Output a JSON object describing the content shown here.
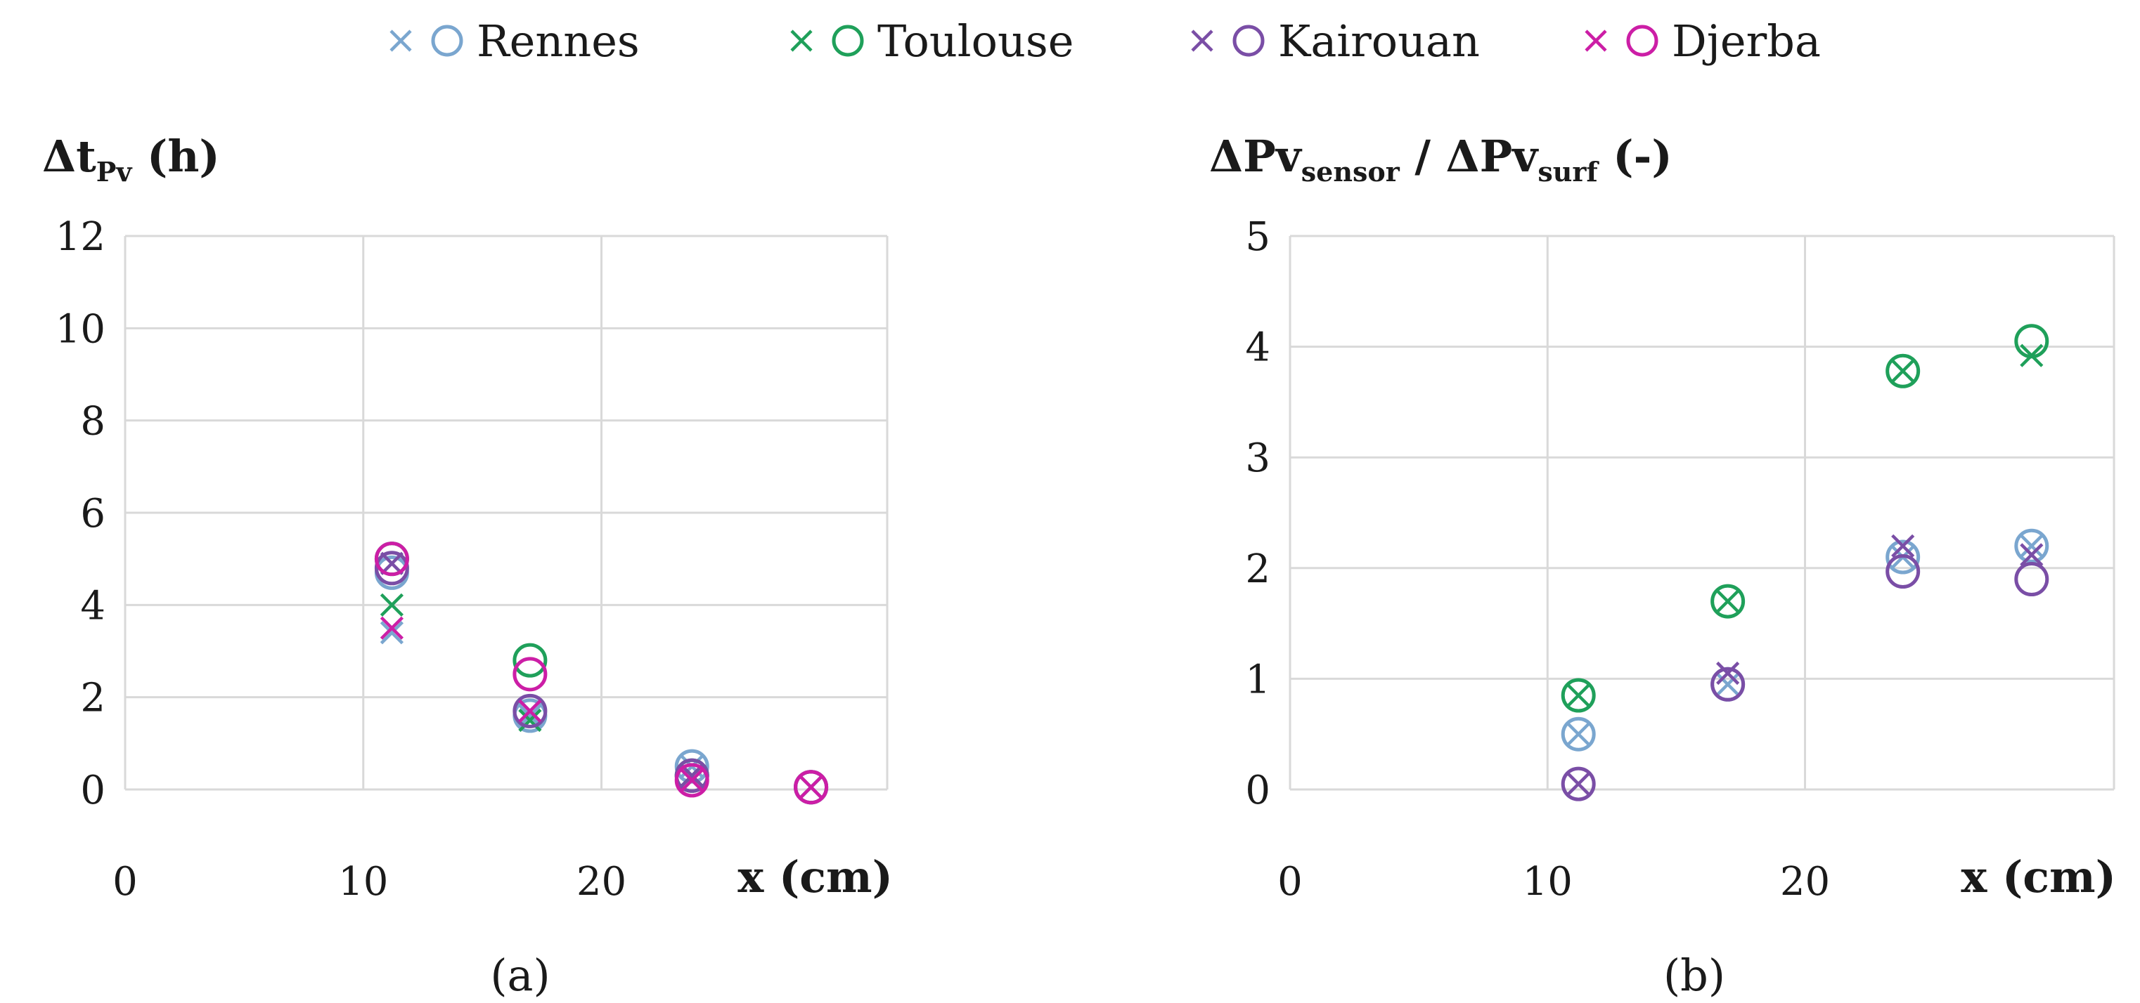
{
  "legend": [
    {
      "label": "Rennes",
      "color": "#7aa6cf",
      "marks": [
        "x",
        "o"
      ]
    },
    {
      "label": "Toulouse",
      "color": "#1fa05a",
      "marks": [
        "x",
        "o"
      ]
    },
    {
      "label": "Kairouan",
      "color": "#7a4ea6",
      "marks": [
        "x",
        "o"
      ]
    },
    {
      "label": "Djerba",
      "color": "#cc1ea6",
      "marks": [
        "x",
        "o"
      ]
    }
  ],
  "chart_data": [
    {
      "type": "scatter",
      "caption": "(a)",
      "ylabel_main": "Δt",
      "ylabel_sub": "Pv",
      "ylabel_unit": " (h)",
      "xlabel": "x (cm)",
      "xlim": [
        0,
        32
      ],
      "ylim": [
        0,
        12
      ],
      "xticks": [
        0,
        10,
        20
      ],
      "yticks": [
        0,
        2,
        4,
        6,
        8,
        10,
        12
      ],
      "grid": true,
      "series": [
        {
          "name": "Rennes",
          "color": "#7aa6cf",
          "x_marks": [
            [
              11.2,
              3.4
            ],
            [
              17,
              1.6
            ],
            [
              23.8,
              0.5
            ],
            [
              28.8,
              0.05
            ]
          ],
          "o_marks": [
            [
              11.2,
              4.7
            ],
            [
              17,
              1.6
            ],
            [
              23.8,
              0.5
            ],
            [
              28.8,
              0.05
            ]
          ]
        },
        {
          "name": "Toulouse",
          "color": "#1fa05a",
          "x_marks": [
            [
              11.2,
              4.0
            ],
            [
              17,
              1.5
            ],
            [
              23.8,
              0.3
            ],
            [
              28.8,
              0.05
            ]
          ],
          "o_marks": [
            [
              11.2,
              5.0
            ],
            [
              17,
              2.8
            ],
            [
              23.8,
              0.3
            ],
            [
              28.8,
              0.05
            ]
          ]
        },
        {
          "name": "Kairouan",
          "color": "#7a4ea6",
          "x_marks": [
            [
              11.2,
              4.9
            ],
            [
              17,
              1.7
            ],
            [
              23.8,
              0.3
            ],
            [
              28.8,
              0.05
            ]
          ],
          "o_marks": [
            [
              11.2,
              4.8
            ],
            [
              17,
              1.7
            ],
            [
              23.8,
              0.3
            ],
            [
              28.8,
              0.05
            ]
          ]
        },
        {
          "name": "Djerba",
          "color": "#cc1ea6",
          "x_marks": [
            [
              11.2,
              3.5
            ],
            [
              17,
              1.7
            ],
            [
              23.8,
              0.2
            ],
            [
              28.8,
              0.05
            ]
          ],
          "o_marks": [
            [
              11.2,
              5.0
            ],
            [
              17,
              2.5
            ],
            [
              23.8,
              0.2
            ],
            [
              28.8,
              0.05
            ]
          ]
        }
      ]
    },
    {
      "type": "scatter",
      "caption": "(b)",
      "ylabel_parts": [
        {
          "t": "ΔPv",
          "sub": false
        },
        {
          "t": "sensor",
          "sub": true
        },
        {
          "t": " / ΔPv",
          "sub": false
        },
        {
          "t": "surf",
          "sub": true
        },
        {
          "t": " (-)",
          "sub": false
        }
      ],
      "xlabel": "x (cm)",
      "xlim": [
        0,
        32
      ],
      "ylim": [
        0,
        5
      ],
      "xticks": [
        0,
        10,
        20
      ],
      "yticks": [
        0,
        1,
        2,
        3,
        4,
        5
      ],
      "grid": true,
      "series": [
        {
          "name": "Rennes",
          "color": "#7aa6cf",
          "x_marks": [
            [
              11.2,
              0.5
            ],
            [
              17,
              0.95
            ],
            [
              23.8,
              2.1
            ],
            [
              28.8,
              2.2
            ]
          ],
          "o_marks": [
            [
              11.2,
              0.5
            ],
            [
              17,
              0.95
            ],
            [
              23.8,
              2.1
            ],
            [
              28.8,
              2.2
            ]
          ]
        },
        {
          "name": "Toulouse",
          "color": "#1fa05a",
          "x_marks": [
            [
              11.2,
              0.85
            ],
            [
              17,
              1.7
            ],
            [
              23.8,
              3.78
            ],
            [
              28.8,
              3.92
            ]
          ],
          "o_marks": [
            [
              11.2,
              0.85
            ],
            [
              17,
              1.7
            ],
            [
              23.8,
              3.78
            ],
            [
              28.8,
              4.05
            ]
          ]
        },
        {
          "name": "Kairouan",
          "color": "#7a4ea6",
          "x_marks": [
            [
              11.2,
              0.05
            ],
            [
              17,
              1.05
            ],
            [
              23.8,
              2.2
            ],
            [
              28.8,
              2.12
            ]
          ],
          "o_marks": [
            [
              11.2,
              0.05
            ],
            [
              17,
              0.95
            ],
            [
              23.8,
              1.97
            ],
            [
              28.8,
              1.9
            ]
          ]
        },
        {
          "name": "Djerba",
          "color": "#cc1ea6",
          "x_marks": [],
          "o_marks": []
        }
      ]
    }
  ]
}
